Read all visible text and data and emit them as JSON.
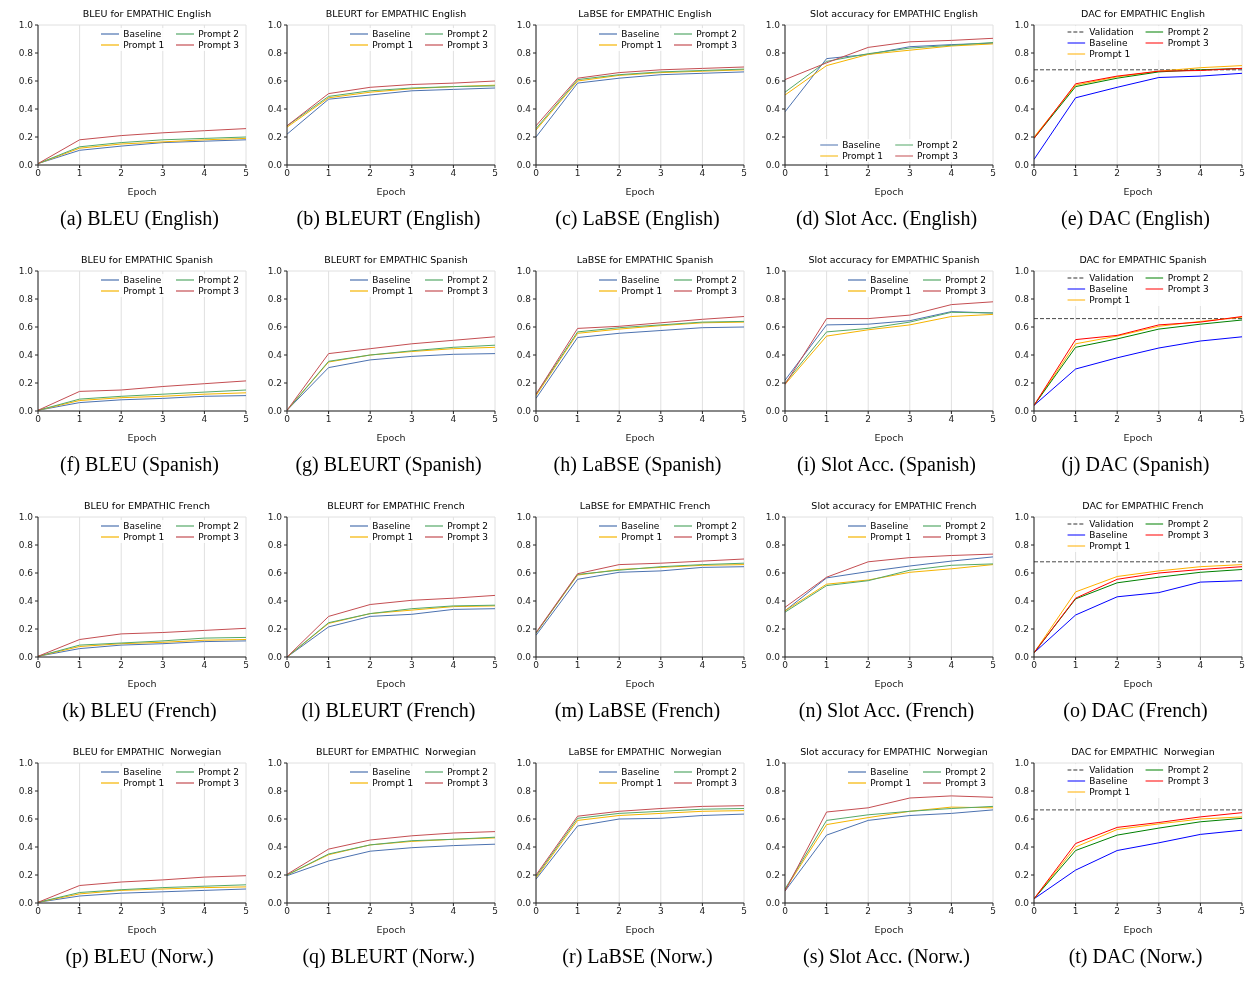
{
  "chart_data": [
    {
      "type": "line",
      "title": "BLEU for EMPATHIC English",
      "xlabel": "Epoch",
      "annotations": [
        "(a) BLEU (English)"
      ],
      "x": [
        0,
        1,
        2,
        3,
        4,
        5
      ],
      "xlim": [
        0,
        5
      ],
      "xticks": [
        0,
        1,
        2,
        3,
        4,
        5
      ],
      "ylim": [
        0,
        1
      ],
      "yticks": [
        {
          "value": 0,
          "label": "0.0"
        },
        {
          "value": 0.2,
          "label": "0.2"
        },
        {
          "value": 0.4,
          "label": "0.4"
        },
        {
          "value": 0.6,
          "label": "0.6"
        },
        {
          "value": 0.8,
          "label": "0.8"
        },
        {
          "value": 1,
          "label": "1.0"
        }
      ],
      "grid": true,
      "legend": "top right",
      "series": [
        {
          "name": "Baseline",
          "color": "#4c72b0",
          "values": [
            0.01,
            0.105,
            0.135,
            0.16,
            0.17,
            0.18
          ]
        },
        {
          "name": "Prompt 1",
          "color": "#f5b400",
          "values": [
            0.01,
            0.12,
            0.15,
            0.165,
            0.18,
            0.19
          ]
        },
        {
          "name": "Prompt 2",
          "color": "#55a868",
          "values": [
            0.01,
            0.13,
            0.16,
            0.18,
            0.19,
            0.2
          ]
        },
        {
          "name": "Prompt 3",
          "color": "#c44e52",
          "values": [
            0.01,
            0.18,
            0.21,
            0.23,
            0.245,
            0.26
          ]
        }
      ]
    },
    {
      "type": "line",
      "title": "BLEURT for EMPATHIC English",
      "xlabel": "Epoch",
      "annotations": [
        "(b) BLEURT (English)"
      ],
      "x": [
        0,
        1,
        2,
        3,
        4,
        5
      ],
      "xlim": [
        0,
        5
      ],
      "xticks": [
        0,
        1,
        2,
        3,
        4,
        5
      ],
      "ylim": [
        0,
        1
      ],
      "yticks": [
        {
          "value": 0,
          "label": "0.0"
        },
        {
          "value": 0.2,
          "label": "0.2"
        },
        {
          "value": 0.4,
          "label": "0.4"
        },
        {
          "value": 0.6,
          "label": "0.6"
        },
        {
          "value": 0.8,
          "label": "0.8"
        },
        {
          "value": 1,
          "label": "1.0"
        }
      ],
      "grid": true,
      "legend": "top right",
      "series": [
        {
          "name": "Baseline",
          "color": "#4c72b0",
          "values": [
            0.22,
            0.47,
            0.5,
            0.53,
            0.54,
            0.55
          ]
        },
        {
          "name": "Prompt 1",
          "color": "#f5b400",
          "values": [
            0.27,
            0.48,
            0.52,
            0.545,
            0.56,
            0.57
          ]
        },
        {
          "name": "Prompt 2",
          "color": "#55a868",
          "values": [
            0.28,
            0.49,
            0.53,
            0.55,
            0.56,
            0.565
          ]
        },
        {
          "name": "Prompt 3",
          "color": "#c44e52",
          "values": [
            0.28,
            0.51,
            0.555,
            0.575,
            0.585,
            0.6
          ]
        }
      ]
    },
    {
      "type": "line",
      "title": "LaBSE for EMPATHIC English",
      "xlabel": "Epoch",
      "annotations": [
        "(c) LaBSE (English)"
      ],
      "x": [
        0,
        1,
        2,
        3,
        4,
        5
      ],
      "xlim": [
        0,
        5
      ],
      "xticks": [
        0,
        1,
        2,
        3,
        4,
        5
      ],
      "ylim": [
        0,
        1
      ],
      "yticks": [
        {
          "value": 0,
          "label": "0.0"
        },
        {
          "value": 0.2,
          "label": "0.2"
        },
        {
          "value": 0.4,
          "label": "0.4"
        },
        {
          "value": 0.6,
          "label": "0.6"
        },
        {
          "value": 0.8,
          "label": "0.8"
        },
        {
          "value": 1,
          "label": "1.0"
        }
      ],
      "grid": true,
      "legend": "top right",
      "series": [
        {
          "name": "Baseline",
          "color": "#4c72b0",
          "values": [
            0.2,
            0.585,
            0.62,
            0.645,
            0.655,
            0.665
          ]
        },
        {
          "name": "Prompt 1",
          "color": "#f5b400",
          "values": [
            0.25,
            0.6,
            0.64,
            0.66,
            0.67,
            0.68
          ]
        },
        {
          "name": "Prompt 2",
          "color": "#55a868",
          "values": [
            0.26,
            0.61,
            0.645,
            0.665,
            0.675,
            0.685
          ]
        },
        {
          "name": "Prompt 3",
          "color": "#c44e52",
          "values": [
            0.28,
            0.62,
            0.66,
            0.68,
            0.69,
            0.7
          ]
        }
      ]
    },
    {
      "type": "line",
      "title": "Slot accuracy for EMPATHIC English",
      "xlabel": "Epoch",
      "annotations": [
        "(d) Slot Acc. (English)"
      ],
      "x": [
        0,
        1,
        2,
        3,
        4,
        5
      ],
      "xlim": [
        0,
        5
      ],
      "xticks": [
        0,
        1,
        2,
        3,
        4,
        5
      ],
      "ylim": [
        0,
        1
      ],
      "yticks": [
        {
          "value": 0,
          "label": "0.0"
        },
        {
          "value": 0.2,
          "label": "0.2"
        },
        {
          "value": 0.4,
          "label": "0.4"
        },
        {
          "value": 0.6,
          "label": "0.6"
        },
        {
          "value": 0.8,
          "label": "0.8"
        },
        {
          "value": 1,
          "label": "1.0"
        }
      ],
      "grid": true,
      "legend": "bottom",
      "series": [
        {
          "name": "Baseline",
          "color": "#4c72b0",
          "values": [
            0.38,
            0.76,
            0.79,
            0.845,
            0.86,
            0.87
          ]
        },
        {
          "name": "Prompt 1",
          "color": "#f5b400",
          "values": [
            0.5,
            0.71,
            0.79,
            0.82,
            0.85,
            0.865
          ]
        },
        {
          "name": "Prompt 2",
          "color": "#55a868",
          "values": [
            0.52,
            0.74,
            0.795,
            0.835,
            0.855,
            0.875
          ]
        },
        {
          "name": "Prompt 3",
          "color": "#c44e52",
          "values": [
            0.61,
            0.73,
            0.84,
            0.88,
            0.89,
            0.905
          ]
        }
      ]
    },
    {
      "type": "line",
      "title": "DAC for EMPATHIC English",
      "xlabel": "Epoch",
      "annotations": [
        "(e) DAC (English)"
      ],
      "x": [
        0,
        1,
        2,
        3,
        4,
        5
      ],
      "xlim": [
        0,
        5
      ],
      "xticks": [
        0,
        1,
        2,
        3,
        4,
        5
      ],
      "ylim": [
        0,
        1
      ],
      "yticks": [
        {
          "value": 0,
          "label": "0.0"
        },
        {
          "value": 0.2,
          "label": "0.2"
        },
        {
          "value": 0.4,
          "label": "0.4"
        },
        {
          "value": 0.6,
          "label": "0.6"
        },
        {
          "value": 0.8,
          "label": "0.8"
        },
        {
          "value": 1,
          "label": "1.0"
        }
      ],
      "grid": true,
      "legend": "top",
      "ref_lines": [
        {
          "axis": "y",
          "value": 0.68,
          "label": "Validation",
          "color": "#333333",
          "line_style": "dashed"
        }
      ],
      "series": [
        {
          "name": "Baseline",
          "color": "#0000ff",
          "values": [
            0.04,
            0.48,
            0.555,
            0.625,
            0.635,
            0.655
          ]
        },
        {
          "name": "Prompt 1",
          "color": "#ffb000",
          "values": [
            0.2,
            0.57,
            0.63,
            0.67,
            0.695,
            0.71
          ]
        },
        {
          "name": "Prompt 2",
          "color": "#008000",
          "values": [
            0.19,
            0.56,
            0.62,
            0.665,
            0.68,
            0.69
          ]
        },
        {
          "name": "Prompt 3",
          "color": "#ff0000",
          "values": [
            0.19,
            0.58,
            0.635,
            0.67,
            0.675,
            0.69
          ]
        }
      ]
    },
    {
      "type": "line",
      "title": "BLEU for EMPATHIC Spanish",
      "xlabel": "Epoch",
      "annotations": [
        "(f) BLEU (Spanish)"
      ],
      "x": [
        0,
        1,
        2,
        3,
        4,
        5
      ],
      "xlim": [
        0,
        5
      ],
      "xticks": [
        0,
        1,
        2,
        3,
        4,
        5
      ],
      "ylim": [
        0,
        1
      ],
      "yticks": [
        {
          "value": 0,
          "label": "0.0"
        },
        {
          "value": 0.2,
          "label": "0.2"
        },
        {
          "value": 0.4,
          "label": "0.4"
        },
        {
          "value": 0.6,
          "label": "0.6"
        },
        {
          "value": 0.8,
          "label": "0.8"
        },
        {
          "value": 1,
          "label": "1.0"
        }
      ],
      "grid": true,
      "legend": "top right",
      "series": [
        {
          "name": "Baseline",
          "color": "#4c72b0",
          "values": [
            0.005,
            0.06,
            0.08,
            0.09,
            0.105,
            0.11
          ]
        },
        {
          "name": "Prompt 1",
          "color": "#f5b400",
          "values": [
            0.005,
            0.075,
            0.095,
            0.105,
            0.12,
            0.13
          ]
        },
        {
          "name": "Prompt 2",
          "color": "#55a868",
          "values": [
            0.005,
            0.085,
            0.105,
            0.12,
            0.135,
            0.15
          ]
        },
        {
          "name": "Prompt 3",
          "color": "#c44e52",
          "values": [
            0.005,
            0.14,
            0.15,
            0.175,
            0.195,
            0.215
          ]
        }
      ]
    },
    {
      "type": "line",
      "title": "BLEURT for EMPATHIC Spanish",
      "xlabel": "Epoch",
      "annotations": [
        "(g) BLEURT (Spanish)"
      ],
      "x": [
        0,
        1,
        2,
        3,
        4,
        5
      ],
      "xlim": [
        0,
        5
      ],
      "xticks": [
        0,
        1,
        2,
        3,
        4,
        5
      ],
      "ylim": [
        0,
        1
      ],
      "yticks": [
        {
          "value": 0,
          "label": "0.0"
        },
        {
          "value": 0.2,
          "label": "0.2"
        },
        {
          "value": 0.4,
          "label": "0.4"
        },
        {
          "value": 0.6,
          "label": "0.6"
        },
        {
          "value": 0.8,
          "label": "0.8"
        },
        {
          "value": 1,
          "label": "1.0"
        }
      ],
      "grid": true,
      "legend": "top right",
      "series": [
        {
          "name": "Baseline",
          "color": "#4c72b0",
          "values": [
            0.005,
            0.31,
            0.365,
            0.39,
            0.405,
            0.41
          ]
        },
        {
          "name": "Prompt 1",
          "color": "#f5b400",
          "values": [
            0.005,
            0.35,
            0.4,
            0.425,
            0.445,
            0.455
          ]
        },
        {
          "name": "Prompt 2",
          "color": "#55a868",
          "values": [
            0.005,
            0.355,
            0.4,
            0.43,
            0.455,
            0.47
          ]
        },
        {
          "name": "Prompt 3",
          "color": "#c44e52",
          "values": [
            0.005,
            0.41,
            0.445,
            0.48,
            0.505,
            0.53
          ]
        }
      ]
    },
    {
      "type": "line",
      "title": "LaBSE for EMPATHIC Spanish",
      "xlabel": "Epoch",
      "annotations": [
        "(h) LaBSE (Spanish)"
      ],
      "x": [
        0,
        1,
        2,
        3,
        4,
        5
      ],
      "xlim": [
        0,
        5
      ],
      "xticks": [
        0,
        1,
        2,
        3,
        4,
        5
      ],
      "ylim": [
        0,
        1
      ],
      "yticks": [
        {
          "value": 0,
          "label": "0.0"
        },
        {
          "value": 0.2,
          "label": "0.2"
        },
        {
          "value": 0.4,
          "label": "0.4"
        },
        {
          "value": 0.6,
          "label": "0.6"
        },
        {
          "value": 0.8,
          "label": "0.8"
        },
        {
          "value": 1,
          "label": "1.0"
        }
      ],
      "grid": true,
      "legend": "top right",
      "series": [
        {
          "name": "Baseline",
          "color": "#4c72b0",
          "values": [
            0.09,
            0.525,
            0.555,
            0.575,
            0.595,
            0.6
          ]
        },
        {
          "name": "Prompt 1",
          "color": "#f5b400",
          "values": [
            0.11,
            0.555,
            0.585,
            0.61,
            0.63,
            0.635
          ]
        },
        {
          "name": "Prompt 2",
          "color": "#55a868",
          "values": [
            0.12,
            0.565,
            0.595,
            0.615,
            0.635,
            0.64
          ]
        },
        {
          "name": "Prompt 3",
          "color": "#c44e52",
          "values": [
            0.12,
            0.59,
            0.605,
            0.63,
            0.655,
            0.675
          ]
        }
      ]
    },
    {
      "type": "line",
      "title": "Slot accuracy for EMPATHIC Spanish",
      "xlabel": "Epoch",
      "annotations": [
        "(i) Slot Acc. (Spanish)"
      ],
      "x": [
        0,
        1,
        2,
        3,
        4,
        5
      ],
      "xlim": [
        0,
        5
      ],
      "xticks": [
        0,
        1,
        2,
        3,
        4,
        5
      ],
      "ylim": [
        0,
        1
      ],
      "yticks": [
        {
          "value": 0,
          "label": "0.0"
        },
        {
          "value": 0.2,
          "label": "0.2"
        },
        {
          "value": 0.4,
          "label": "0.4"
        },
        {
          "value": 0.6,
          "label": "0.6"
        },
        {
          "value": 0.8,
          "label": "0.8"
        },
        {
          "value": 1,
          "label": "1.0"
        }
      ],
      "grid": true,
      "legend": "top right",
      "series": [
        {
          "name": "Baseline",
          "color": "#4c72b0",
          "values": [
            0.22,
            0.615,
            0.62,
            0.645,
            0.71,
            0.7
          ]
        },
        {
          "name": "Prompt 1",
          "color": "#f5b400",
          "values": [
            0.19,
            0.535,
            0.58,
            0.615,
            0.675,
            0.69
          ]
        },
        {
          "name": "Prompt 2",
          "color": "#55a868",
          "values": [
            0.2,
            0.565,
            0.59,
            0.635,
            0.705,
            0.7
          ]
        },
        {
          "name": "Prompt 3",
          "color": "#c44e52",
          "values": [
            0.19,
            0.66,
            0.66,
            0.685,
            0.76,
            0.78
          ]
        }
      ]
    },
    {
      "type": "line",
      "title": "DAC for EMPATHIC Spanish",
      "xlabel": "Epoch",
      "annotations": [
        "(j) DAC (Spanish)"
      ],
      "x": [
        0,
        1,
        2,
        3,
        4,
        5
      ],
      "xlim": [
        0,
        5
      ],
      "xticks": [
        0,
        1,
        2,
        3,
        4,
        5
      ],
      "ylim": [
        0,
        1
      ],
      "yticks": [
        {
          "value": 0,
          "label": "0.0"
        },
        {
          "value": 0.2,
          "label": "0.2"
        },
        {
          "value": 0.4,
          "label": "0.4"
        },
        {
          "value": 0.6,
          "label": "0.6"
        },
        {
          "value": 0.8,
          "label": "0.8"
        },
        {
          "value": 1,
          "label": "1.0"
        }
      ],
      "grid": true,
      "legend": "top",
      "ref_lines": [
        {
          "axis": "y",
          "value": 0.66,
          "label": "Validation",
          "color": "#333333",
          "line_style": "dashed"
        }
      ],
      "series": [
        {
          "name": "Baseline",
          "color": "#0000ff",
          "values": [
            0.04,
            0.3,
            0.38,
            0.45,
            0.5,
            0.53
          ]
        },
        {
          "name": "Prompt 1",
          "color": "#ffb000",
          "values": [
            0.04,
            0.48,
            0.535,
            0.605,
            0.64,
            0.67
          ]
        },
        {
          "name": "Prompt 2",
          "color": "#008000",
          "values": [
            0.04,
            0.455,
            0.515,
            0.585,
            0.62,
            0.65
          ]
        },
        {
          "name": "Prompt 3",
          "color": "#ff0000",
          "values": [
            0.04,
            0.51,
            0.54,
            0.615,
            0.635,
            0.675
          ]
        }
      ]
    },
    {
      "type": "line",
      "title": "BLEU for EMPATHIC French",
      "xlabel": "Epoch",
      "annotations": [
        "(k) BLEU (French)"
      ],
      "x": [
        0,
        1,
        2,
        3,
        4,
        5
      ],
      "xlim": [
        0,
        5
      ],
      "xticks": [
        0,
        1,
        2,
        3,
        4,
        5
      ],
      "ylim": [
        0,
        1
      ],
      "yticks": [
        {
          "value": 0,
          "label": "0.0"
        },
        {
          "value": 0.2,
          "label": "0.2"
        },
        {
          "value": 0.4,
          "label": "0.4"
        },
        {
          "value": 0.6,
          "label": "0.6"
        },
        {
          "value": 0.8,
          "label": "0.8"
        },
        {
          "value": 1,
          "label": "1.0"
        }
      ],
      "grid": true,
      "legend": "top right",
      "series": [
        {
          "name": "Baseline",
          "color": "#4c72b0",
          "values": [
            0.005,
            0.06,
            0.085,
            0.095,
            0.11,
            0.115
          ]
        },
        {
          "name": "Prompt 1",
          "color": "#f5b400",
          "values": [
            0.005,
            0.075,
            0.095,
            0.105,
            0.12,
            0.125
          ]
        },
        {
          "name": "Prompt 2",
          "color": "#55a868",
          "values": [
            0.005,
            0.085,
            0.1,
            0.115,
            0.135,
            0.14
          ]
        },
        {
          "name": "Prompt 3",
          "color": "#c44e52",
          "values": [
            0.005,
            0.125,
            0.165,
            0.175,
            0.19,
            0.205
          ]
        }
      ]
    },
    {
      "type": "line",
      "title": "BLEURT for EMPATHIC French",
      "xlabel": "Epoch",
      "annotations": [
        "(l) BLEURT (French)"
      ],
      "x": [
        0,
        1,
        2,
        3,
        4,
        5
      ],
      "xlim": [
        0,
        5
      ],
      "xticks": [
        0,
        1,
        2,
        3,
        4,
        5
      ],
      "ylim": [
        0,
        1
      ],
      "yticks": [
        {
          "value": 0,
          "label": "0.0"
        },
        {
          "value": 0.2,
          "label": "0.2"
        },
        {
          "value": 0.4,
          "label": "0.4"
        },
        {
          "value": 0.6,
          "label": "0.6"
        },
        {
          "value": 0.8,
          "label": "0.8"
        },
        {
          "value": 1,
          "label": "1.0"
        }
      ],
      "grid": true,
      "legend": "top right",
      "series": [
        {
          "name": "Baseline",
          "color": "#4c72b0",
          "values": [
            0,
            0.215,
            0.29,
            0.305,
            0.34,
            0.345
          ]
        },
        {
          "name": "Prompt 1",
          "color": "#f5b400",
          "values": [
            0,
            0.24,
            0.31,
            0.335,
            0.36,
            0.365
          ]
        },
        {
          "name": "Prompt 2",
          "color": "#55a868",
          "values": [
            0,
            0.245,
            0.31,
            0.345,
            0.365,
            0.37
          ]
        },
        {
          "name": "Prompt 3",
          "color": "#c44e52",
          "values": [
            0,
            0.29,
            0.375,
            0.405,
            0.42,
            0.44
          ]
        }
      ]
    },
    {
      "type": "line",
      "title": "LaBSE for EMPATHIC French",
      "xlabel": "Epoch",
      "annotations": [
        "(m) LaBSE (French)"
      ],
      "x": [
        0,
        1,
        2,
        3,
        4,
        5
      ],
      "xlim": [
        0,
        5
      ],
      "xticks": [
        0,
        1,
        2,
        3,
        4,
        5
      ],
      "ylim": [
        0,
        1
      ],
      "yticks": [
        {
          "value": 0,
          "label": "0.0"
        },
        {
          "value": 0.2,
          "label": "0.2"
        },
        {
          "value": 0.4,
          "label": "0.4"
        },
        {
          "value": 0.6,
          "label": "0.6"
        },
        {
          "value": 0.8,
          "label": "0.8"
        },
        {
          "value": 1,
          "label": "1.0"
        }
      ],
      "grid": true,
      "legend": "top right",
      "series": [
        {
          "name": "Baseline",
          "color": "#4c72b0",
          "values": [
            0.155,
            0.555,
            0.605,
            0.615,
            0.64,
            0.645
          ]
        },
        {
          "name": "Prompt 1",
          "color": "#f5b400",
          "values": [
            0.17,
            0.585,
            0.625,
            0.64,
            0.655,
            0.66
          ]
        },
        {
          "name": "Prompt 2",
          "color": "#55a868",
          "values": [
            0.17,
            0.59,
            0.62,
            0.645,
            0.66,
            0.67
          ]
        },
        {
          "name": "Prompt 3",
          "color": "#c44e52",
          "values": [
            0.175,
            0.595,
            0.66,
            0.67,
            0.685,
            0.7
          ]
        }
      ]
    },
    {
      "type": "line",
      "title": "Slot accuracy for EMPATHIC French",
      "xlabel": "Epoch",
      "annotations": [
        "(n) Slot Acc. (French)"
      ],
      "x": [
        0,
        1,
        2,
        3,
        4,
        5
      ],
      "xlim": [
        0,
        5
      ],
      "xticks": [
        0,
        1,
        2,
        3,
        4,
        5
      ],
      "ylim": [
        0,
        1
      ],
      "yticks": [
        {
          "value": 0,
          "label": "0.0"
        },
        {
          "value": 0.2,
          "label": "0.2"
        },
        {
          "value": 0.4,
          "label": "0.4"
        },
        {
          "value": 0.6,
          "label": "0.6"
        },
        {
          "value": 0.8,
          "label": "0.8"
        },
        {
          "value": 1,
          "label": "1.0"
        }
      ],
      "grid": true,
      "legend": "top right",
      "series": [
        {
          "name": "Baseline",
          "color": "#4c72b0",
          "values": [
            0.33,
            0.565,
            0.61,
            0.65,
            0.685,
            0.715
          ]
        },
        {
          "name": "Prompt 1",
          "color": "#f5b400",
          "values": [
            0.33,
            0.52,
            0.55,
            0.605,
            0.63,
            0.66
          ]
        },
        {
          "name": "Prompt 2",
          "color": "#55a868",
          "values": [
            0.32,
            0.51,
            0.545,
            0.62,
            0.655,
            0.665
          ]
        },
        {
          "name": "Prompt 3",
          "color": "#c44e52",
          "values": [
            0.355,
            0.57,
            0.68,
            0.71,
            0.725,
            0.735
          ]
        }
      ]
    },
    {
      "type": "line",
      "title": "DAC for EMPATHIC French",
      "xlabel": "Epoch",
      "annotations": [
        "(o) DAC (French)"
      ],
      "x": [
        0,
        1,
        2,
        3,
        4,
        5
      ],
      "xlim": [
        0,
        5
      ],
      "xticks": [
        0,
        1,
        2,
        3,
        4,
        5
      ],
      "ylim": [
        0,
        1
      ],
      "yticks": [
        {
          "value": 0,
          "label": "0.0"
        },
        {
          "value": 0.2,
          "label": "0.2"
        },
        {
          "value": 0.4,
          "label": "0.4"
        },
        {
          "value": 0.6,
          "label": "0.6"
        },
        {
          "value": 0.8,
          "label": "0.8"
        },
        {
          "value": 1,
          "label": "1.0"
        }
      ],
      "grid": true,
      "legend": "top",
      "ref_lines": [
        {
          "axis": "y",
          "value": 0.68,
          "label": "Validation",
          "color": "#333333",
          "line_style": "dashed"
        }
      ],
      "series": [
        {
          "name": "Baseline",
          "color": "#0000ff",
          "values": [
            0.03,
            0.3,
            0.43,
            0.46,
            0.535,
            0.545
          ]
        },
        {
          "name": "Prompt 1",
          "color": "#ffb000",
          "values": [
            0.03,
            0.465,
            0.575,
            0.615,
            0.645,
            0.66
          ]
        },
        {
          "name": "Prompt 2",
          "color": "#008000",
          "values": [
            0.03,
            0.415,
            0.53,
            0.57,
            0.605,
            0.625
          ]
        },
        {
          "name": "Prompt 3",
          "color": "#ff0000",
          "values": [
            0.03,
            0.42,
            0.555,
            0.6,
            0.625,
            0.645
          ]
        }
      ]
    },
    {
      "type": "line",
      "title": "BLEU for EMPATHIC  Norwegian",
      "xlabel": "Epoch",
      "annotations": [
        "(p) BLEU (Norw.)"
      ],
      "x": [
        0,
        1,
        2,
        3,
        4,
        5
      ],
      "xlim": [
        0,
        5
      ],
      "xticks": [
        0,
        1,
        2,
        3,
        4,
        5
      ],
      "ylim": [
        0,
        1
      ],
      "yticks": [
        {
          "value": 0,
          "label": "0.0"
        },
        {
          "value": 0.2,
          "label": "0.2"
        },
        {
          "value": 0.4,
          "label": "0.4"
        },
        {
          "value": 0.6,
          "label": "0.6"
        },
        {
          "value": 0.8,
          "label": "0.8"
        },
        {
          "value": 1,
          "label": "1.0"
        }
      ],
      "grid": true,
      "legend": "top right",
      "series": [
        {
          "name": "Baseline",
          "color": "#4c72b0",
          "values": [
            0.005,
            0.05,
            0.07,
            0.08,
            0.09,
            0.1
          ]
        },
        {
          "name": "Prompt 1",
          "color": "#f5b400",
          "values": [
            0.005,
            0.065,
            0.09,
            0.1,
            0.11,
            0.115
          ]
        },
        {
          "name": "Prompt 2",
          "color": "#55a868",
          "values": [
            0.005,
            0.075,
            0.095,
            0.11,
            0.12,
            0.13
          ]
        },
        {
          "name": "Prompt 3",
          "color": "#c44e52",
          "values": [
            0.005,
            0.125,
            0.15,
            0.165,
            0.185,
            0.195
          ]
        }
      ]
    },
    {
      "type": "line",
      "title": "BLEURT for EMPATHIC  Norwegian",
      "xlabel": "Epoch",
      "annotations": [
        "(q) BLEURT (Norw.)"
      ],
      "x": [
        0,
        1,
        2,
        3,
        4,
        5
      ],
      "xlim": [
        0,
        5
      ],
      "xticks": [
        0,
        1,
        2,
        3,
        4,
        5
      ],
      "ylim": [
        0,
        1
      ],
      "yticks": [
        {
          "value": 0,
          "label": "0.0"
        },
        {
          "value": 0.2,
          "label": "0.2"
        },
        {
          "value": 0.4,
          "label": "0.4"
        },
        {
          "value": 0.6,
          "label": "0.6"
        },
        {
          "value": 0.8,
          "label": "0.8"
        },
        {
          "value": 1,
          "label": "1.0"
        }
      ],
      "grid": true,
      "legend": "top right",
      "series": [
        {
          "name": "Baseline",
          "color": "#4c72b0",
          "values": [
            0.195,
            0.3,
            0.37,
            0.395,
            0.41,
            0.42
          ]
        },
        {
          "name": "Prompt 1",
          "color": "#f5b400",
          "values": [
            0.2,
            0.345,
            0.415,
            0.44,
            0.455,
            0.465
          ]
        },
        {
          "name": "Prompt 2",
          "color": "#55a868",
          "values": [
            0.2,
            0.35,
            0.415,
            0.445,
            0.455,
            0.47
          ]
        },
        {
          "name": "Prompt 3",
          "color": "#c44e52",
          "values": [
            0.205,
            0.385,
            0.45,
            0.48,
            0.5,
            0.51
          ]
        }
      ]
    },
    {
      "type": "line",
      "title": "LaBSE for EMPATHIC  Norwegian",
      "xlabel": "Epoch",
      "annotations": [
        "(r) LaBSE (Norw.)"
      ],
      "x": [
        0,
        1,
        2,
        3,
        4,
        5
      ],
      "xlim": [
        0,
        5
      ],
      "xticks": [
        0,
        1,
        2,
        3,
        4,
        5
      ],
      "ylim": [
        0,
        1
      ],
      "yticks": [
        {
          "value": 0,
          "label": "0.0"
        },
        {
          "value": 0.2,
          "label": "0.2"
        },
        {
          "value": 0.4,
          "label": "0.4"
        },
        {
          "value": 0.6,
          "label": "0.6"
        },
        {
          "value": 0.8,
          "label": "0.8"
        },
        {
          "value": 1,
          "label": "1.0"
        }
      ],
      "grid": true,
      "legend": "top right",
      "series": [
        {
          "name": "Baseline",
          "color": "#4c72b0",
          "values": [
            0.17,
            0.55,
            0.6,
            0.605,
            0.625,
            0.635
          ]
        },
        {
          "name": "Prompt 1",
          "color": "#f5b400",
          "values": [
            0.18,
            0.59,
            0.625,
            0.64,
            0.655,
            0.66
          ]
        },
        {
          "name": "Prompt 2",
          "color": "#55a868",
          "values": [
            0.19,
            0.605,
            0.64,
            0.655,
            0.67,
            0.675
          ]
        },
        {
          "name": "Prompt 3",
          "color": "#c44e52",
          "values": [
            0.2,
            0.62,
            0.655,
            0.675,
            0.69,
            0.695
          ]
        }
      ]
    },
    {
      "type": "line",
      "title": "Slot accuracy for EMPATHIC  Norwegian",
      "xlabel": "Epoch",
      "annotations": [
        "(s) Slot Acc. (Norw.)"
      ],
      "x": [
        0,
        1,
        2,
        3,
        4,
        5
      ],
      "xlim": [
        0,
        5
      ],
      "xticks": [
        0,
        1,
        2,
        3,
        4,
        5
      ],
      "ylim": [
        0,
        1
      ],
      "yticks": [
        {
          "value": 0,
          "label": "0.0"
        },
        {
          "value": 0.2,
          "label": "0.2"
        },
        {
          "value": 0.4,
          "label": "0.4"
        },
        {
          "value": 0.6,
          "label": "0.6"
        },
        {
          "value": 0.8,
          "label": "0.8"
        },
        {
          "value": 1,
          "label": "1.0"
        }
      ],
      "grid": true,
      "legend": "top right",
      "series": [
        {
          "name": "Baseline",
          "color": "#4c72b0",
          "values": [
            0.085,
            0.485,
            0.59,
            0.625,
            0.64,
            0.665
          ]
        },
        {
          "name": "Prompt 1",
          "color": "#f5b400",
          "values": [
            0.095,
            0.56,
            0.61,
            0.655,
            0.685,
            0.68
          ]
        },
        {
          "name": "Prompt 2",
          "color": "#55a868",
          "values": [
            0.1,
            0.59,
            0.63,
            0.655,
            0.675,
            0.69
          ]
        },
        {
          "name": "Prompt 3",
          "color": "#c44e52",
          "values": [
            0.085,
            0.65,
            0.68,
            0.75,
            0.765,
            0.755
          ]
        }
      ]
    },
    {
      "type": "line",
      "title": "DAC for EMPATHIC  Norwegian",
      "xlabel": "Epoch",
      "annotations": [
        "(t) DAC (Norw.)"
      ],
      "x": [
        0,
        1,
        2,
        3,
        4,
        5
      ],
      "xlim": [
        0,
        5
      ],
      "xticks": [
        0,
        1,
        2,
        3,
        4,
        5
      ],
      "ylim": [
        0,
        1
      ],
      "yticks": [
        {
          "value": 0,
          "label": "0.0"
        },
        {
          "value": 0.2,
          "label": "0.2"
        },
        {
          "value": 0.4,
          "label": "0.4"
        },
        {
          "value": 0.6,
          "label": "0.6"
        },
        {
          "value": 0.8,
          "label": "0.8"
        },
        {
          "value": 1,
          "label": "1.0"
        }
      ],
      "grid": true,
      "legend": "top",
      "ref_lines": [
        {
          "axis": "y",
          "value": 0.665,
          "label": "Validation",
          "color": "#333333",
          "line_style": "dashed"
        }
      ],
      "series": [
        {
          "name": "Baseline",
          "color": "#0000ff",
          "values": [
            0.03,
            0.235,
            0.375,
            0.43,
            0.49,
            0.52
          ]
        },
        {
          "name": "Prompt 1",
          "color": "#ffb000",
          "values": [
            0.03,
            0.4,
            0.525,
            0.565,
            0.6,
            0.615
          ]
        },
        {
          "name": "Prompt 2",
          "color": "#008000",
          "values": [
            0.03,
            0.375,
            0.485,
            0.535,
            0.58,
            0.605
          ]
        },
        {
          "name": "Prompt 3",
          "color": "#ff0000",
          "values": [
            0.03,
            0.425,
            0.54,
            0.575,
            0.615,
            0.645
          ]
        }
      ]
    }
  ]
}
